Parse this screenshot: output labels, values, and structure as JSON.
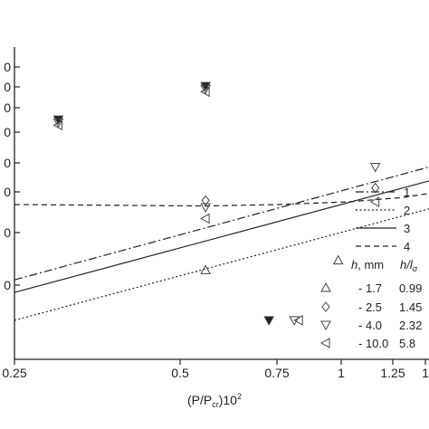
{
  "chart_data": {
    "type": "scatter",
    "xlabel": {
      "main": "(P/P",
      "sub": "cr",
      "tail": ")10",
      "sup": "2"
    },
    "xticks": [
      "0.25",
      "0.5",
      "0.75",
      "1",
      "1.25",
      "1"
    ],
    "yticks": [
      "0",
      "0",
      "0",
      "0",
      "0",
      "0",
      "0",
      "0"
    ],
    "lines": [
      {
        "label": "1",
        "style": "dashdot",
        "x": [
          0.25,
          1.4
        ],
        "y": [
          0.645,
          1.05
        ]
      },
      {
        "label": "2",
        "style": "dotted",
        "x": [
          0.25,
          1.4
        ],
        "y": [
          0.5,
          0.9
        ]
      },
      {
        "label": "3",
        "style": "solid",
        "x": [
          0.25,
          1.4
        ],
        "y": [
          0.6,
          1.0
        ]
      },
      {
        "label": "4",
        "style": "dashed",
        "x": [
          0.25,
          0.55,
          0.75,
          1.0,
          1.25,
          1.4
        ],
        "y": [
          0.915,
          0.91,
          0.915,
          0.925,
          0.94,
          0.955
        ]
      }
    ],
    "markers": [
      {
        "h": "1.7",
        "hl": "0.99",
        "symbol": "triangle-up"
      },
      {
        "h": "2.5",
        "hl": "1.45",
        "symbol": "diamond"
      },
      {
        "h": "4.0",
        "hl": "2.32",
        "symbol": "triangle-down"
      },
      {
        "h": "10.0",
        "hl": "5.8",
        "symbol": "triangle-left"
      }
    ],
    "points": [
      {
        "symbol": "triangle-down",
        "x": 0.3,
        "y": 1.22,
        "filled": true
      },
      {
        "symbol": "triangle-down",
        "x": 0.3,
        "y": 1.21
      },
      {
        "symbol": "triangle-left",
        "x": 0.3,
        "y": 1.2
      },
      {
        "symbol": "triangle-down",
        "x": 0.553,
        "y": 1.34,
        "filled": true
      },
      {
        "symbol": "triangle-down",
        "x": 0.553,
        "y": 1.33
      },
      {
        "symbol": "triangle-left",
        "x": 0.553,
        "y": 1.32
      },
      {
        "symbol": "triangle-up",
        "x": 0.553,
        "y": 0.68
      },
      {
        "symbol": "diamond",
        "x": 0.553,
        "y": 0.93
      },
      {
        "symbol": "triangle-down",
        "x": 0.553,
        "y": 0.905
      },
      {
        "symbol": "triangle-left",
        "x": 0.553,
        "y": 0.865
      },
      {
        "symbol": "triangle-down",
        "x": 0.72,
        "y": 0.5,
        "filled": true
      },
      {
        "symbol": "triangle-down",
        "x": 0.8,
        "y": 0.5
      },
      {
        "symbol": "triangle-left",
        "x": 0.815,
        "y": 0.5
      },
      {
        "symbol": "triangle-up",
        "x": 0.96,
        "y": 0.715
      },
      {
        "symbol": "triangle-down",
        "x": 1.12,
        "y": 1.05
      },
      {
        "symbol": "diamond",
        "x": 1.12,
        "y": 0.975
      },
      {
        "symbol": "triangle-left",
        "x": 1.12,
        "y": 0.925
      }
    ],
    "xlim": [
      0.25,
      1.4
    ],
    "ylim": [
      0.36,
      1.48
    ],
    "xscale": "log",
    "legend": {
      "position": "right",
      "header_h": "h",
      "header_unit": ", mm",
      "header_hl": "h/l",
      "header_hl_sub": "σ"
    }
  }
}
